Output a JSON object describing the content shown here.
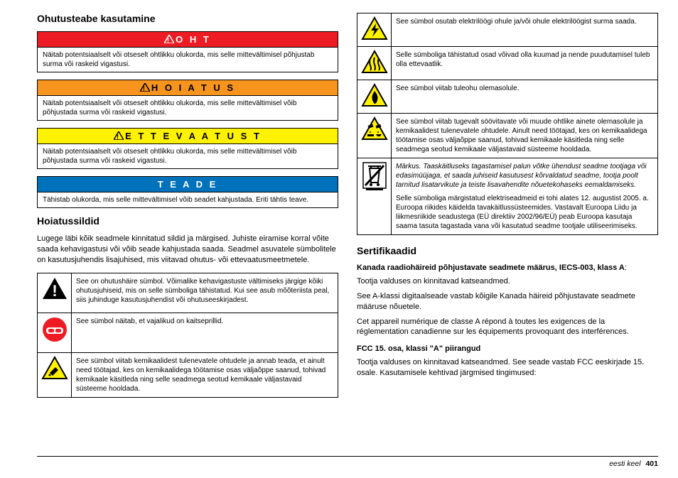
{
  "left": {
    "heading1": "Ohutusteabe kasutamine",
    "boxes": [
      {
        "hdrClass": "hdr-danger",
        "tri": true,
        "triColor": "#fff",
        "label": "O H T",
        "body": "Näitab potentsiaalselt või otseselt ohtlikku olukorda, mis selle mittevältimisel põhjustab surma või raskeid vigastusi."
      },
      {
        "hdrClass": "hdr-warning",
        "tri": true,
        "triColor": "#000",
        "label": "H O I A T U S",
        "body": "Näitab potentsiaalselt või otseselt ohtlikku olukorda, mis selle mittevältimisel võib põhjustada surma või raskeid vigastusi."
      },
      {
        "hdrClass": "hdr-caution",
        "tri": true,
        "triColor": "#000",
        "label": "E T T E V A A T U S T",
        "body": "Näitab potentsiaalselt või otseselt ohtlikku olukorda, mis selle mittevältimisel võib põhjustada surma või raskeid vigastusi."
      },
      {
        "hdrClass": "hdr-notice",
        "tri": false,
        "triColor": "#fff",
        "label": "T E A D E",
        "body": "Tähistab olukorda, mis selle mittevältimisel võib seadet kahjustada. Eriti tähtis teave."
      }
    ],
    "heading2": "Hoiatussildid",
    "intro2": "Lugege läbi kõik seadmele kinnitatud sildid ja märgised. Juhiste eiramise korral võite saada kehavigastusi või võib seade kahjustada saada. Seadmel asuvatele sümbolitele on kasutusjuhendis lisajuhised, mis viitavad ohutus- või ettevaatusmeetmetele.",
    "symbols1": [
      {
        "icon": "alert",
        "text": "See on ohutushäire sümbol. Võimalike kehavigastuste vältimiseks järgige kõiki ohutusjuhiseid, mis on selle sümboliga tähistatud. Kui see asub mõõteriista peal, siis juhinduge kasutusjuhendist või ohutuseeskirjadest."
      },
      {
        "icon": "goggles",
        "text": "See sümbol näitab, et vajalikud on kaitseprillid."
      },
      {
        "icon": "chem",
        "text": "See sümbol viitab kemikaalidest tulenevatele ohtudele ja annab teada, et ainult need töötajad, kes on kemikaalidega töötamise osas väljaõppe saanud, tohivad kemikaale käsitleda ning selle seadmega seotud kemikaale väljastavaid süsteeme hooldada."
      }
    ]
  },
  "right": {
    "symbols2": [
      {
        "icon": "shock",
        "text": "See sümbol osutab elektrilöögi ohule ja/või ohule elektrilöögist surma saada."
      },
      {
        "icon": "hot",
        "text": "Selle sümboliga tähistatud osad võivad olla kuumad ja nende puudutamisel tuleb olla ettevaatlik."
      },
      {
        "icon": "fire",
        "text": "See sümbol viitab tuleohu olemasolule."
      },
      {
        "icon": "corrosive",
        "text": "See sümbol viitab tugevalt söövitavate või muude ohtlike ainete olemasolule ja kemikaalidest tulenevatele ohtudele. Ainult need töötajad, kes on kemikaalidega töötamise osas väljaõppe saanud, tohivad kemikaale käsitleda ning selle seadmega seotud kemikaale väljastavaid süsteeme hooldada."
      },
      {
        "icon": "weee",
        "noteItalic": "Märkus. Taaskäitluseks tagastamisel palun võtke ühendust seadme tootjaga või edasimüüjaga, et saada juhiseid kasutusest kõrvaldatud seadme, tootja poolt tarnitud lisatarvikute ja teiste lisavahendite nõuetekohaseks eemaldamiseks.",
        "text": "Selle sümboliga märgistatud elektriseadmeid ei tohi alates 12. augustist 2005. a. Euroopa riikides käidelda tavakäitlussüsteemides. Vastavalt Euroopa Liidu ja liikmesriikide seadustega (EÜ direktiiv 2002/96/EÜ) peab Euroopa kasutaja saama tasuta tagastada vana või kasutatud seadme tootjale utiliseerimiseks."
      }
    ],
    "heading3": "Sertifikaadid",
    "cert1_title": "Kanada raadiohäireid põhjustavate seadmete määrus, IECS-003, klass A",
    "cert1_colon": ":",
    "cert1_p1": "Tootja valduses on kinnitavad katseandmed.",
    "cert1_p2": "See A-klassi digitaalseade vastab kõigile Kanada häireid põhjustavate seadmete määruse nõuetele.",
    "cert1_p3": "Cet appareil numérique de classe A répond à toutes les exigences de la réglementation canadienne sur les équipements provoquant des interférences.",
    "cert2_title": "FCC 15. osa, klassi \"A\" piirangud",
    "cert2_p1": "Tootja valduses on kinnitavad katseandmed. See seade vastab FCC eeskirjade 15. osale. Kasutamisele kehtivad järgmised tingimused:"
  },
  "footer": {
    "lang": "eesti keel",
    "page": "401"
  }
}
